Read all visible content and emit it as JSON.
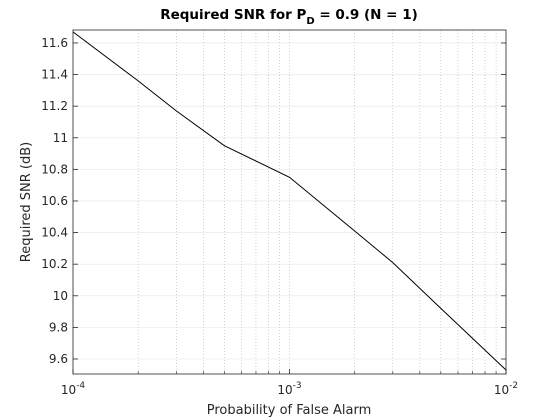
{
  "chart_data": {
    "type": "line",
    "title": {
      "main": "Required SNR for P",
      "subscript": "D",
      "rest": " = 0.9 (N = 1)"
    },
    "x_label": "Probability of False Alarm",
    "y_label": "Required SNR (dB)",
    "log_x": true,
    "grid": true,
    "x": [
      0.0001,
      0.0002,
      0.0003,
      0.0005,
      0.001,
      0.002,
      0.003,
      0.005,
      0.01
    ],
    "series": [
      {
        "color": "#000000",
        "values": [
          11.67,
          11.36,
          11.17,
          10.95,
          10.75,
          10.41,
          10.21,
          9.92,
          9.53
        ]
      }
    ],
    "xlim": [
      0.0001,
      0.01
    ],
    "ylim": [
      9.505,
      11.682
    ],
    "xticks": [
      {
        "value": 0.0001,
        "label": "10",
        "exponent": "-4"
      },
      {
        "value": 0.001,
        "label": "10",
        "exponent": "-3"
      },
      {
        "value": 0.01,
        "label": "10",
        "exponent": "-2"
      }
    ],
    "xminor": [
      0.0002,
      0.0003,
      0.0004,
      0.0005,
      0.0006,
      0.0007,
      0.0008,
      0.0009,
      0.002,
      0.003,
      0.004,
      0.005,
      0.006,
      0.007,
      0.008,
      0.009
    ],
    "yticks": [
      9.6,
      9.8,
      10,
      10.2,
      10.4,
      10.6,
      10.8,
      11,
      11.2,
      11.4,
      11.6
    ]
  }
}
